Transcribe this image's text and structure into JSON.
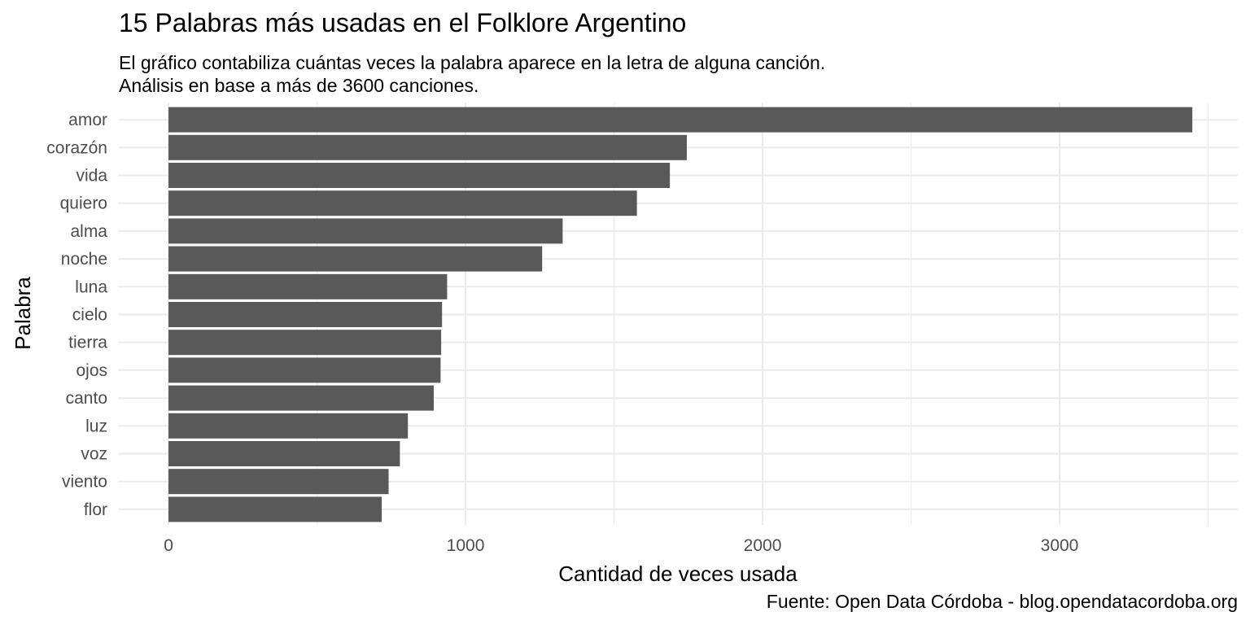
{
  "chart_data": {
    "type": "bar",
    "orientation": "horizontal",
    "title": "15 Palabras más usadas en el Folklore Argentino",
    "subtitle": [
      "El gráfico contabiliza cuántas veces la palabra aparece en la letra de alguna canción.",
      "Análisis en base a más de 3600 canciones."
    ],
    "caption": "Fuente: Open Data Córdoba - blog.opendatacordoba.org",
    "xlabel": "Cantidad de veces usada",
    "ylabel": "Palabra",
    "categories": [
      "amor",
      "corazón",
      "vida",
      "quiero",
      "alma",
      "noche",
      "luna",
      "cielo",
      "tierra",
      "ojos",
      "canto",
      "luz",
      "voz",
      "viento",
      "flor"
    ],
    "values": [
      3447,
      1745,
      1688,
      1577,
      1327,
      1258,
      938,
      921,
      918,
      916,
      893,
      806,
      779,
      741,
      718
    ],
    "xlim": [
      -170,
      3600
    ],
    "xticks": [
      0,
      1000,
      2000,
      3000
    ],
    "xtick_labels": [
      "0",
      "1000",
      "2000",
      "3000"
    ],
    "grid": true,
    "bar_color": "#595959",
    "grid_color": "#ebebeb"
  }
}
